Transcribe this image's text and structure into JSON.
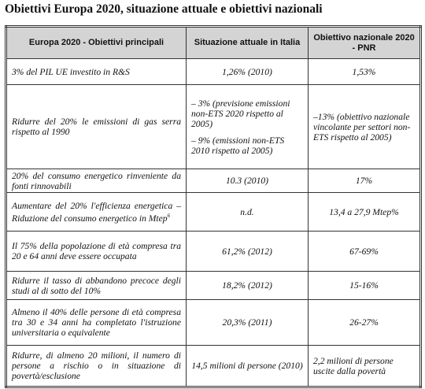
{
  "header": {
    "title": "Obiettivi Europa 2020, situazione attuale e obiettivi nazionali"
  },
  "table": {
    "columns": [
      "Europa 2020 - Obiettivi principali",
      "Situazione attuale in Italia",
      "Obiettivo nazionale 2020 - PNR"
    ],
    "rows": [
      [
        [
          "3% del PIL UE investito in R&S"
        ],
        [
          "1,26% (2010)"
        ],
        [
          "1,53%"
        ]
      ],
      [
        [
          "Ridurre del 20% le emissioni di gas serra rispetto al 1990"
        ],
        [
          "– 3% (previsione emissioni non-ETS 2020 rispetto al 2005)",
          "– 9% (emissioni non-ETS 2010 rispetto al 2005)"
        ],
        [
          "–13% (obiettivo nazionale vincolante per settori non-ETS rispetto al 2005)"
        ]
      ],
      [
        [
          "20% del consumo energetico rinveniente da fonti rinnovabili"
        ],
        [
          "10.3 (2010)"
        ],
        [
          "17%"
        ]
      ],
      [
        [
          "Aumentare del 20% l'efficienza energetica – Riduzione del consumo energetico in Mtep"
        ],
        [
          "n.d."
        ],
        [
          "13,4 a 27,9 Mtep%"
        ]
      ],
      [
        [
          "Il 75% della popolazione di età compresa tra 20 e 64 anni deve essere occupata"
        ],
        [
          "61,2% (2012)"
        ],
        [
          "67-69%"
        ]
      ],
      [
        [
          "Ridurre il tasso di abbandono precoce degli studi al di sotto del 10%"
        ],
        [
          "18,2% (2012)"
        ],
        [
          "15-16%"
        ]
      ],
      [
        [
          "Almeno il 40% delle persone di età compresa tra 30 e 34 anni ha completato l'istruzione universitaria o equivalente"
        ],
        [
          "20,3% (2011)"
        ],
        [
          "26-27%"
        ]
      ],
      [
        [
          "Ridurre, di almeno 20 milioni, il numero di persone a rischio o in situazione di povertà/esclusione"
        ],
        [
          "14,5 milioni di persone (2010)"
        ],
        [
          "2,2 milioni di persone uscite dalla povertà"
        ]
      ]
    ],
    "footnote_ref": "6"
  }
}
